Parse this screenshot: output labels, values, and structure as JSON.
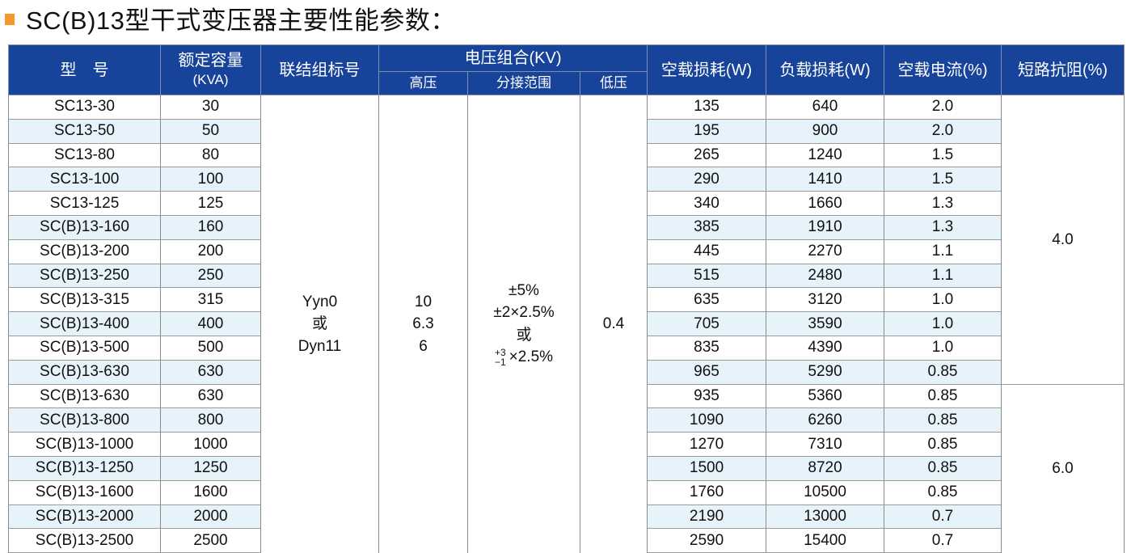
{
  "title": "SC(B)13型干式变压器主要性能参数：",
  "colors": {
    "header": "#17439a",
    "row_shade": "#e6f3fb",
    "bullet": "#f39a2c"
  },
  "headers": {
    "model": "型　号",
    "capacity_line1": "额定容量",
    "capacity_line2": "(KVA)",
    "connection": "联结组标号",
    "voltage": "电压组合(KV)",
    "hv": "高压",
    "tap": "分接范围",
    "lv": "低压",
    "no_load_loss": "空载损耗(W)",
    "load_loss": "负载损耗(W)",
    "no_load_current": "空载电流(%)",
    "impedance": "短路抗阻(%)"
  },
  "merged": {
    "connection": [
      "Yyn0",
      "或",
      "Dyn11"
    ],
    "hv": [
      "10",
      "6.3",
      "6"
    ],
    "tap": [
      "±5%",
      "±2×2.5%",
      "或",
      "×2.5%"
    ],
    "tap_sup": "+3",
    "tap_sub": "−1",
    "lv": "0.4",
    "impedance_a": "4.0",
    "impedance_b": "6.0"
  },
  "rows": [
    [
      "SC13-30",
      "30",
      "135",
      "640",
      "2.0"
    ],
    [
      "SC13-50",
      "50",
      "195",
      "900",
      "2.0"
    ],
    [
      "SC13-80",
      "80",
      "265",
      "1240",
      "1.5"
    ],
    [
      "SC13-100",
      "100",
      "290",
      "1410",
      "1.5"
    ],
    [
      "SC13-125",
      "125",
      "340",
      "1660",
      "1.3"
    ],
    [
      "SC(B)13-160",
      "160",
      "385",
      "1910",
      "1.3"
    ],
    [
      "SC(B)13-200",
      "200",
      "445",
      "2270",
      "1.1"
    ],
    [
      "SC(B)13-250",
      "250",
      "515",
      "2480",
      "1.1"
    ],
    [
      "SC(B)13-315",
      "315",
      "635",
      "3120",
      "1.0"
    ],
    [
      "SC(B)13-400",
      "400",
      "705",
      "3590",
      "1.0"
    ],
    [
      "SC(B)13-500",
      "500",
      "835",
      "4390",
      "1.0"
    ],
    [
      "SC(B)13-630",
      "630",
      "965",
      "5290",
      "0.85"
    ],
    [
      "SC(B)13-630",
      "630",
      "935",
      "5360",
      "0.85"
    ],
    [
      "SC(B)13-800",
      "800",
      "1090",
      "6260",
      "0.85"
    ],
    [
      "SC(B)13-1000",
      "1000",
      "1270",
      "7310",
      "0.85"
    ],
    [
      "SC(B)13-1250",
      "1250",
      "1500",
      "8720",
      "0.85"
    ],
    [
      "SC(B)13-1600",
      "1600",
      "1760",
      "10500",
      "0.85"
    ],
    [
      "SC(B)13-2000",
      "2000",
      "2190",
      "13000",
      "0.7"
    ],
    [
      "SC(B)13-2500",
      "2500",
      "2590",
      "15400",
      "0.7"
    ]
  ]
}
